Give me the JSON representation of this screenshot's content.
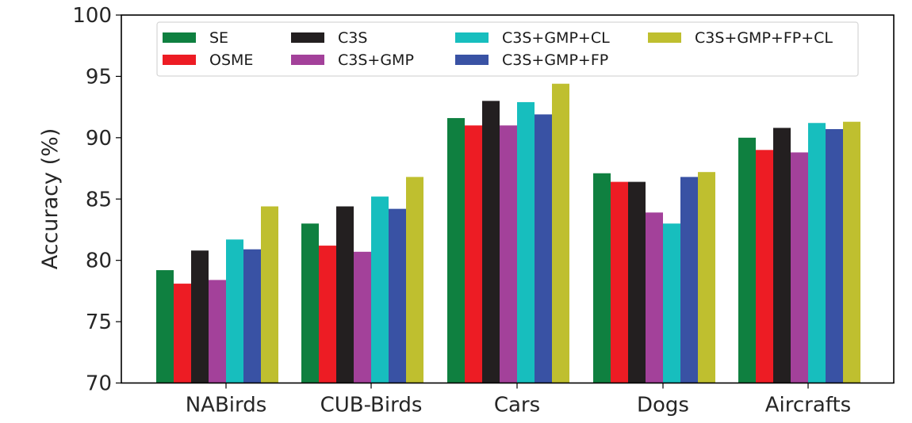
{
  "chart_data": {
    "type": "bar",
    "title": "",
    "xlabel": "",
    "ylabel": "Accuracy (%)",
    "ylim": [
      70,
      100
    ],
    "yticks": [
      70,
      75,
      80,
      85,
      90,
      95,
      100
    ],
    "grid": false,
    "legend_position": "top",
    "legend_columns": 4,
    "categories": [
      "NABirds",
      "CUB-Birds",
      "Cars",
      "Dogs",
      "Aircrafts"
    ],
    "series": [
      {
        "name": "SE",
        "color": "#0f8040",
        "values": [
          79.2,
          83.0,
          91.6,
          87.1,
          90.0
        ]
      },
      {
        "name": "OSME",
        "color": "#ed1c24",
        "values": [
          78.1,
          81.2,
          91.0,
          86.4,
          89.0
        ]
      },
      {
        "name": "C3S",
        "color": "#231f20",
        "values": [
          80.8,
          84.4,
          93.0,
          86.4,
          90.8
        ]
      },
      {
        "name": "C3S+GMP",
        "color": "#a3419a",
        "values": [
          78.4,
          80.7,
          91.0,
          83.9,
          88.8
        ]
      },
      {
        "name": "C3S+GMP+CL",
        "color": "#17bebe",
        "values": [
          81.7,
          85.2,
          92.9,
          83.0,
          91.2
        ]
      },
      {
        "name": "C3S+GMP+FP",
        "color": "#3952a4",
        "values": [
          80.9,
          84.2,
          91.9,
          86.8,
          90.7
        ]
      },
      {
        "name": "C3S+GMP+FP+CL",
        "color": "#bfbf2f",
        "values": [
          84.4,
          86.8,
          94.4,
          87.2,
          91.3
        ]
      }
    ]
  }
}
